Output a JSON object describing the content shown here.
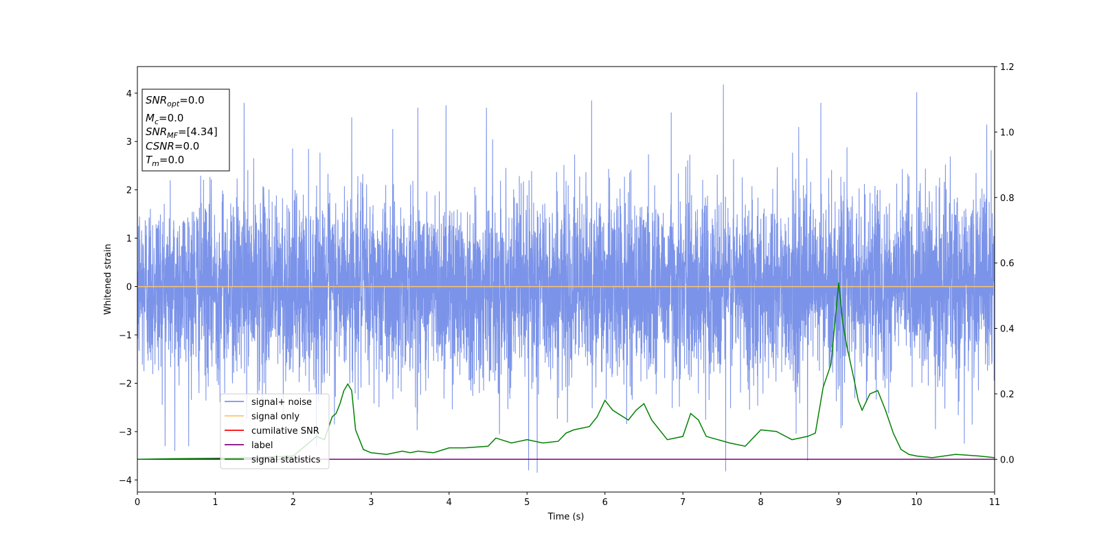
{
  "chart_data": {
    "type": "line",
    "xlabel": "Time (s)",
    "ylabel": "Whitened strain",
    "xlim": [
      0,
      11
    ],
    "ylim": [
      -4.25,
      4.55
    ],
    "y2lim": [
      -0.1,
      1.2
    ],
    "x_ticks": [
      0,
      1,
      2,
      3,
      4,
      5,
      6,
      7,
      8,
      9,
      10,
      11
    ],
    "x_tick_labels": [
      "0",
      "1",
      "2",
      "3",
      "4",
      "5",
      "6",
      "7",
      "8",
      "9",
      "10",
      "11"
    ],
    "y_ticks": [
      4,
      3,
      2,
      1,
      0,
      -1,
      -2,
      -3,
      -4
    ],
    "y_tick_labels": [
      "4",
      "3",
      "2",
      "1",
      "0",
      "−1",
      "−2",
      "−3",
      "−4"
    ],
    "y2_ticks": [
      1.2,
      1.0,
      0.8,
      0.6,
      0.4,
      0.2,
      0.0
    ],
    "y2_tick_labels": [
      "1.2",
      "1.0",
      "0.8",
      "0.6",
      "0.4",
      "0.2",
      "0.0"
    ],
    "grid": false,
    "legend_position": "lower-left",
    "legend": [
      {
        "label": "signal+ noise",
        "color": "#7b93e8"
      },
      {
        "label": "signal only",
        "color": "#ffc46a"
      },
      {
        "label": "cumilative SNR",
        "color": "#ff0000"
      },
      {
        "label": "label",
        "color": "#800080"
      },
      {
        "label": "signal statistics",
        "color": "#008000"
      }
    ],
    "annotation_box": {
      "lines": [
        {
          "sym": "SNR",
          "sub": "opt",
          "val": "=0.0"
        },
        {
          "sym": "M",
          "sub": "c",
          "val": "=0.0"
        },
        {
          "sym": "SNR",
          "sub": "MF",
          "val": "=[4.34]"
        },
        {
          "sym": "CSNR",
          "sub": "",
          "val": "=0.0"
        },
        {
          "sym": "T",
          "sub": "m",
          "val": "=0.0"
        }
      ]
    },
    "series": [
      {
        "name": "signal+ noise",
        "axis": "left",
        "color": "#7b93e8",
        "style": "dense noise, envelope approx ±2.6, peaks to 4.2 / −3.85",
        "notable_peaks": [
          {
            "x": 1.37,
            "y": 3.8
          },
          {
            "x": 2.75,
            "y": 3.5
          },
          {
            "x": 3.6,
            "y": 3.7
          },
          {
            "x": 3.96,
            "y": 3.75
          },
          {
            "x": 4.48,
            "y": 3.7
          },
          {
            "x": 5.83,
            "y": 3.85
          },
          {
            "x": 6.85,
            "y": 3.6
          },
          {
            "x": 7.52,
            "y": 4.18
          },
          {
            "x": 8.77,
            "y": 3.8
          },
          {
            "x": 10.0,
            "y": 4.02
          },
          {
            "x": 10.9,
            "y": 3.35
          }
        ],
        "notable_troughs": [
          {
            "x": 0.48,
            "y": -3.4
          },
          {
            "x": 5.02,
            "y": -3.8
          },
          {
            "x": 5.13,
            "y": -3.85
          },
          {
            "x": 7.55,
            "y": -3.82
          },
          {
            "x": 8.6,
            "y": -3.6
          }
        ]
      },
      {
        "name": "signal only",
        "axis": "left",
        "color": "#ffc46a",
        "x": [
          0,
          11
        ],
        "y": [
          0,
          0
        ]
      },
      {
        "name": "label",
        "axis": "right",
        "color": "#800080",
        "x": [
          0,
          11
        ],
        "y": [
          0,
          0
        ]
      },
      {
        "name": "signal statistics",
        "axis": "right",
        "color": "#008000",
        "x": [
          0,
          0.5,
          1.0,
          1.5,
          2.0,
          2.2,
          2.3,
          2.4,
          2.5,
          2.55,
          2.6,
          2.65,
          2.7,
          2.75,
          2.8,
          2.9,
          3.0,
          3.2,
          3.4,
          3.5,
          3.6,
          3.8,
          4.0,
          4.2,
          4.5,
          4.6,
          4.8,
          5.0,
          5.2,
          5.4,
          5.5,
          5.6,
          5.8,
          5.9,
          6.0,
          6.1,
          6.3,
          6.4,
          6.5,
          6.6,
          6.8,
          7.0,
          7.1,
          7.2,
          7.3,
          7.6,
          7.8,
          8.0,
          8.2,
          8.4,
          8.6,
          8.7,
          8.8,
          8.9,
          9.0,
          9.05,
          9.1,
          9.2,
          9.25,
          9.3,
          9.4,
          9.5,
          9.6,
          9.7,
          9.8,
          9.9,
          10.0,
          10.2,
          10.5,
          10.8,
          11.0
        ],
        "y": [
          0.0,
          0.002,
          0.003,
          0.005,
          0.01,
          0.05,
          0.07,
          0.06,
          0.13,
          0.14,
          0.17,
          0.21,
          0.23,
          0.21,
          0.09,
          0.03,
          0.02,
          0.015,
          0.025,
          0.02,
          0.025,
          0.02,
          0.035,
          0.035,
          0.04,
          0.065,
          0.05,
          0.06,
          0.05,
          0.055,
          0.08,
          0.09,
          0.1,
          0.13,
          0.18,
          0.15,
          0.12,
          0.15,
          0.17,
          0.12,
          0.06,
          0.07,
          0.14,
          0.12,
          0.07,
          0.05,
          0.04,
          0.09,
          0.085,
          0.06,
          0.07,
          0.08,
          0.22,
          0.29,
          0.54,
          0.42,
          0.35,
          0.24,
          0.18,
          0.15,
          0.2,
          0.21,
          0.15,
          0.08,
          0.03,
          0.015,
          0.01,
          0.005,
          0.015,
          0.01,
          0.005
        ]
      }
    ]
  }
}
